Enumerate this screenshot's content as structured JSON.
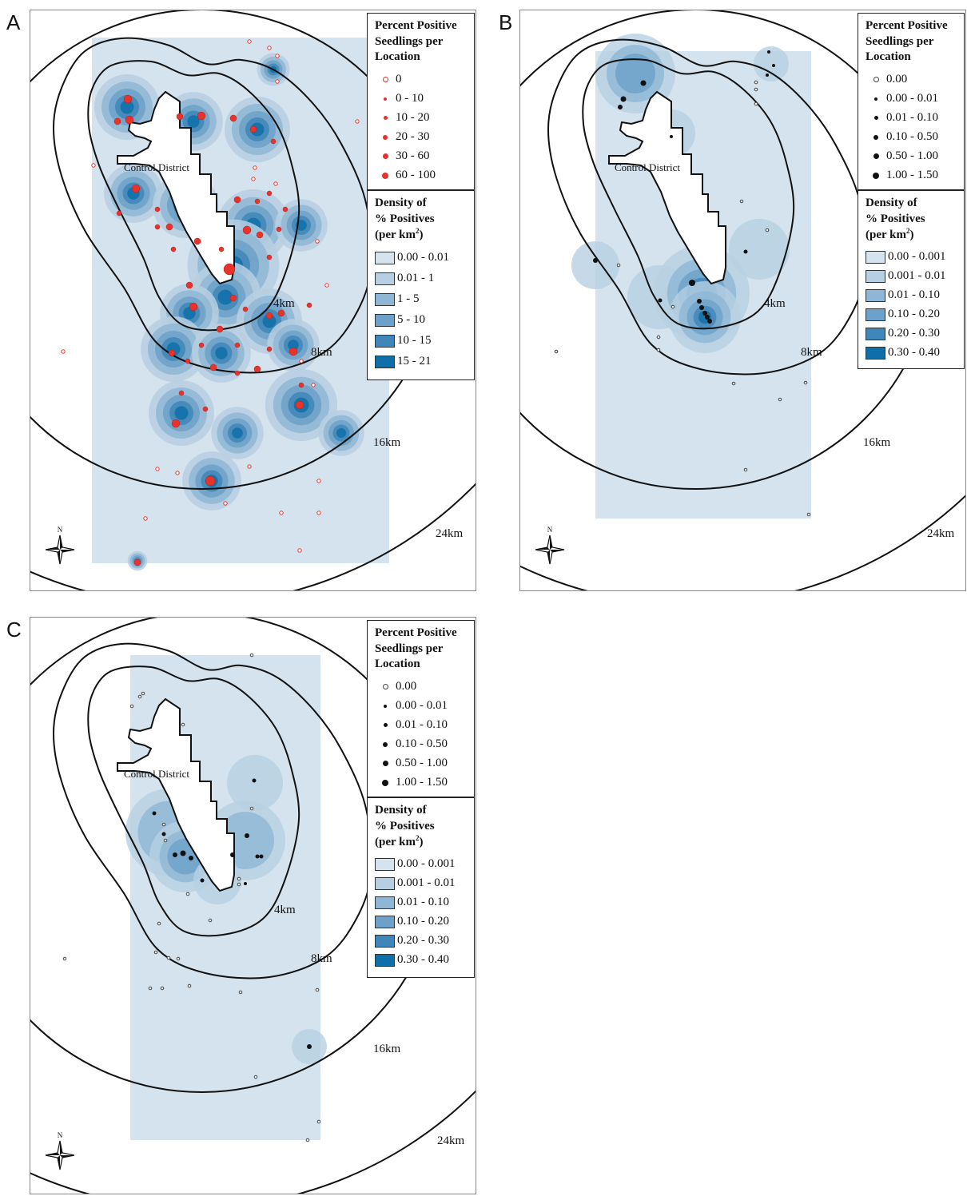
{
  "panels": [
    {
      "letter": "A",
      "district_label": "Control District",
      "ring_labels": [
        "4km",
        "8km",
        "16km",
        "24km"
      ],
      "compass_label": "N",
      "point_legend": {
        "title": [
          "Percent Positive",
          "Seedlings per",
          "Location"
        ],
        "point_color": "#e8322a",
        "items": [
          "0",
          "0 - 10",
          "10 - 20",
          "20 - 30",
          "30 - 60",
          "60 - 100"
        ]
      },
      "density_legend": {
        "title_lines": [
          "Density of",
          "% Positives"
        ],
        "title_unit": "(per km",
        "title_sup": "2",
        "title_close": ")",
        "items": [
          "0.00 - 0.01",
          "0.01 - 1",
          "1 - 5",
          "5 - 10",
          "10 - 15",
          "15 - 21"
        ]
      }
    },
    {
      "letter": "B",
      "district_label": "Control District",
      "ring_labels": [
        "4km",
        "8km",
        "16km",
        "24km"
      ],
      "compass_label": "N",
      "point_legend": {
        "title": [
          "Percent Positive",
          "Seedlings per",
          "Location"
        ],
        "point_color": "#111111",
        "items": [
          "0.00",
          "0.00 - 0.01",
          "0.01 - 0.10",
          "0.10 - 0.50",
          "0.50 - 1.00",
          "1.00 - 1.50"
        ]
      },
      "density_legend": {
        "title_lines": [
          "Density of",
          "% Positives"
        ],
        "title_unit": "(per km",
        "title_sup": "2",
        "title_close": ")",
        "items": [
          "0.00 - 0.001",
          "0.001 - 0.01",
          "0.01 - 0.10",
          "0.10 - 0.20",
          "0.20 - 0.30",
          "0.30 - 0.40"
        ]
      }
    },
    {
      "letter": "C",
      "district_label": "Control District",
      "ring_labels": [
        "4km",
        "8km",
        "16km",
        "24km"
      ],
      "compass_label": "N",
      "point_legend": {
        "title": [
          "Percent Positive",
          "Seedlings per",
          "Location"
        ],
        "point_color": "#111111",
        "items": [
          "0.00",
          "0.00 - 0.01",
          "0.01 - 0.10",
          "0.10 - 0.50",
          "0.50 - 1.00",
          "1.00 - 1.50"
        ]
      },
      "density_legend": {
        "title_lines": [
          "Density of",
          "% Positives"
        ],
        "title_unit": "(per km",
        "title_sup": "2",
        "title_close": ")",
        "items": [
          "0.00 - 0.001",
          "0.001 - 0.01",
          "0.01 - 0.10",
          "0.10 - 0.20",
          "0.20 - 0.30",
          "0.30 - 0.40"
        ]
      }
    }
  ],
  "density_colors": [
    "#d4e3ee",
    "#b7cfe2",
    "#8fb7d5",
    "#6da1c9",
    "#3f86b9",
    "#0f6fa8"
  ]
}
